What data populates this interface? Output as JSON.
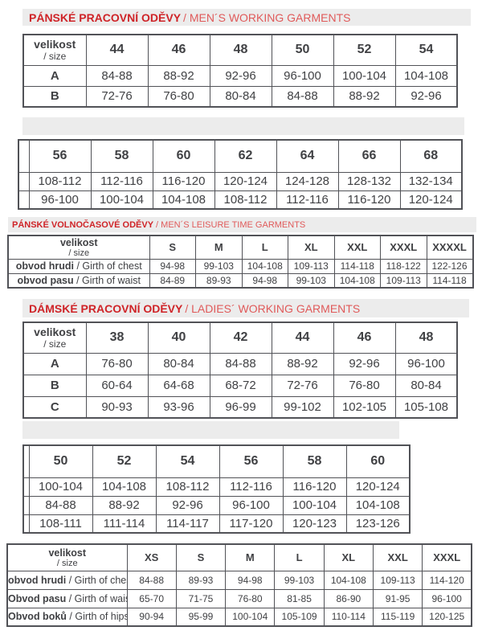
{
  "colors": {
    "title_red_bold": "#cf2428",
    "title_red_light": "#e05a5a",
    "bar_gray": "#ececec",
    "table_border": "#515257",
    "text": "#404144"
  },
  "sections": {
    "men_working": {
      "title": "PÁNSKÉ PRACOVNÍ ODĚVY",
      "subtitle": "/ MEN´S WORKING GARMENTS"
    },
    "men_leisure": {
      "title": "PÁNSKÉ VOLNOČASOVÉ ODĚVY",
      "subtitle": "/ MEN´S LEISURE TIME GARMENTS"
    },
    "ladies_working": {
      "title": "DÁMSKÉ PRACOVNÍ ODĚVY",
      "subtitle": "/ LADIES´ WORKING GARMENTS"
    }
  },
  "tables": {
    "men_sizes_44_54": {
      "corner": {
        "top": "velikost",
        "bottom": "/ size"
      },
      "columns": [
        "44",
        "46",
        "48",
        "50",
        "52",
        "54"
      ],
      "right_partial": true,
      "rows": [
        {
          "label_bold": "A",
          "values": [
            "84-88",
            "88-92",
            "92-96",
            "96-100",
            "100-104",
            "104-108"
          ]
        },
        {
          "label_bold": "B",
          "values": [
            "72-76",
            "76-80",
            "80-84",
            "84-88",
            "88-92",
            "92-96"
          ]
        }
      ]
    },
    "men_sizes_56_68": {
      "left_partial": true,
      "columns": [
        "56",
        "58",
        "60",
        "62",
        "64",
        "66",
        "68"
      ],
      "rows": [
        {
          "values": [
            "108-112",
            "112-116",
            "116-120",
            "120-124",
            "124-128",
            "128-132",
            "132-134"
          ]
        },
        {
          "values": [
            "96-100",
            "100-104",
            "104-108",
            "108-112",
            "112-116",
            "116-120",
            "120-124"
          ]
        }
      ]
    },
    "men_leisure_sizes": {
      "corner": {
        "top": "velikost",
        "bottom": "/ size"
      },
      "columns": [
        "S",
        "M",
        "L",
        "XL",
        "XXL",
        "XXXL",
        "XXXXL"
      ],
      "rows": [
        {
          "label_bold": "obvod hrudi",
          "label_rest": " / Girth of chest",
          "values": [
            "94-98",
            "99-103",
            "104-108",
            "109-113",
            "114-118",
            "118-122",
            "122-126"
          ]
        },
        {
          "label_bold": "obvod pasu",
          "label_rest": " / Girth of waist",
          "values": [
            "84-89",
            "89-93",
            "94-98",
            "99-103",
            "104-108",
            "109-113",
            "114-118"
          ]
        }
      ]
    },
    "ladies_sizes_38_48": {
      "corner": {
        "top": "velikost",
        "bottom": "/ size"
      },
      "columns": [
        "38",
        "40",
        "42",
        "44",
        "46",
        "48"
      ],
      "right_partial": true,
      "rows": [
        {
          "label_bold": "A",
          "values": [
            "76-80",
            "80-84",
            "84-88",
            "88-92",
            "92-96",
            "96-100"
          ]
        },
        {
          "label_bold": "B",
          "values": [
            "60-64",
            "64-68",
            "68-72",
            "72-76",
            "76-80",
            "80-84"
          ]
        },
        {
          "label_bold": "C",
          "values": [
            "90-93",
            "93-96",
            "96-99",
            "99-102",
            "102-105",
            "105-108"
          ]
        }
      ]
    },
    "ladies_sizes_50_60": {
      "left_partial": true,
      "columns": [
        "50",
        "52",
        "54",
        "56",
        "58",
        "60"
      ],
      "rows": [
        {
          "values": [
            "100-104",
            "104-108",
            "108-112",
            "112-116",
            "116-120",
            "120-124"
          ]
        },
        {
          "values": [
            "84-88",
            "88-92",
            "92-96",
            "96-100",
            "100-104",
            "104-108"
          ]
        },
        {
          "values": [
            "108-111",
            "111-114",
            "114-117",
            "117-120",
            "120-123",
            "123-126"
          ]
        }
      ]
    },
    "ladies_letter_sizes": {
      "corner": {
        "top": "velikost",
        "bottom": "/ size"
      },
      "columns": [
        "XS",
        "S",
        "M",
        "L",
        "XL",
        "XXL",
        "XXXL"
      ],
      "rows": [
        {
          "label_bold": "obvod hrudi",
          "label_rest": " / Girth of chest",
          "values": [
            "84-88",
            "89-93",
            "94-98",
            "99-103",
            "104-108",
            "109-113",
            "114-120"
          ]
        },
        {
          "label_bold": "Obvod pasu",
          "label_rest": " / Girth of waist",
          "values": [
            "65-70",
            "71-75",
            "76-80",
            "81-85",
            "86-90",
            "91-95",
            "96-100"
          ]
        },
        {
          "label_bold": "Obvod boků",
          "label_rest": " / Girth of hips",
          "values": [
            "90-94",
            "95-99",
            "100-104",
            "105-109",
            "110-114",
            "115-119",
            "120-125"
          ]
        }
      ]
    }
  }
}
